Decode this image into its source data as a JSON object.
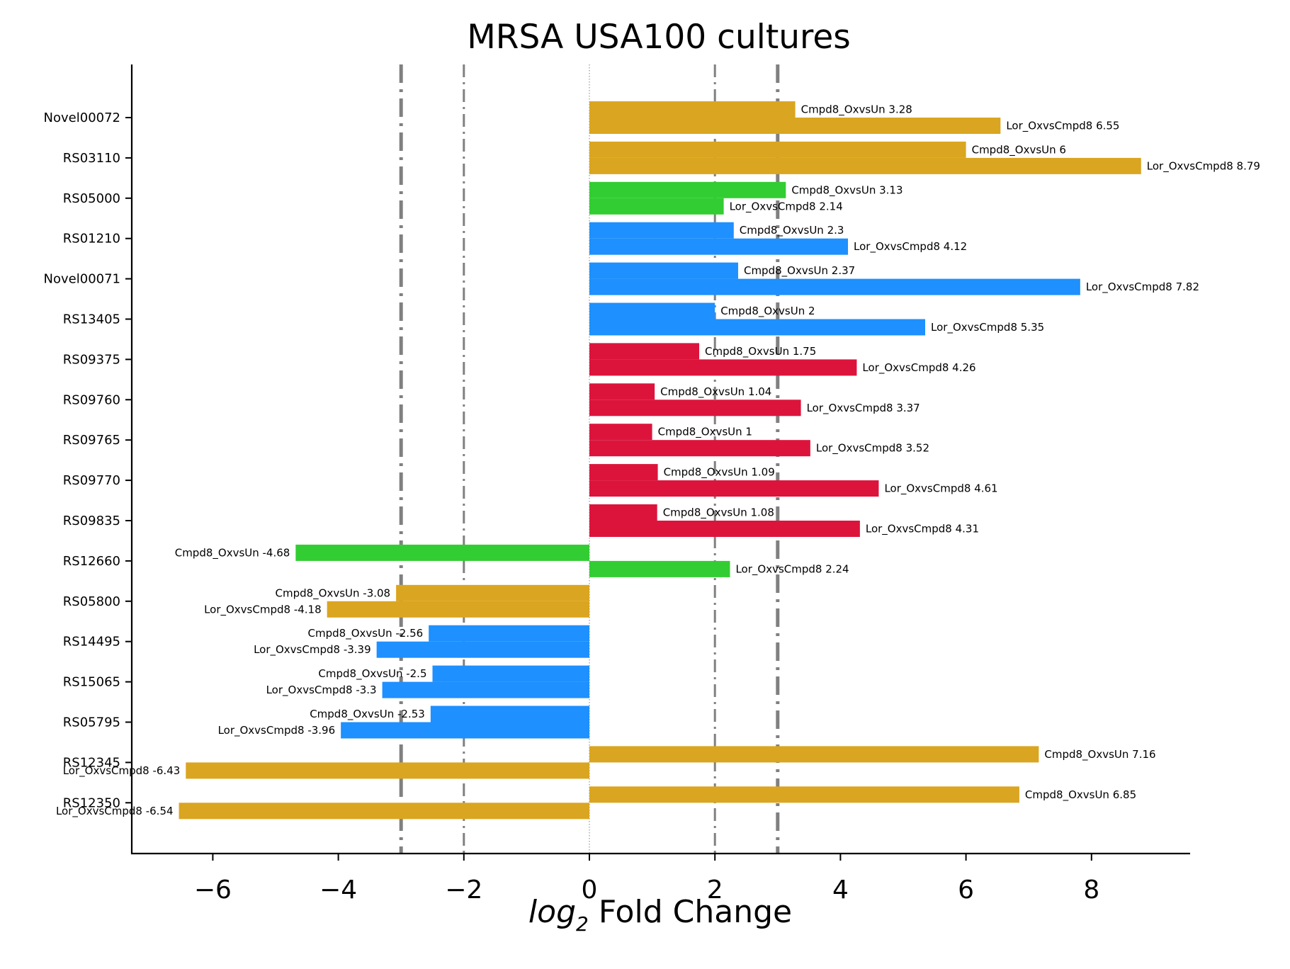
{
  "chart_data": {
    "type": "bar",
    "orientation": "horizontal",
    "title": "MRSA USA100 cultures",
    "xlabel_prefix": "log",
    "xlabel_sub": "2",
    "xlabel_suffix": " Fold Change",
    "xlim": [
      -7.3,
      9.5
    ],
    "xticks": [
      -6,
      -4,
      -2,
      0,
      2,
      4,
      6,
      8
    ],
    "xtick_labels": [
      "−6",
      "−4",
      "−2",
      "0",
      "2",
      "4",
      "6",
      "8"
    ],
    "reference_lines": [
      {
        "x": -3,
        "style": "dash-dot",
        "width": "thick"
      },
      {
        "x": -2,
        "style": "dash-dot",
        "width": "thin"
      },
      {
        "x": 0,
        "style": "dotted",
        "width": "hairline"
      },
      {
        "x": 2,
        "style": "dash-dot",
        "width": "thin"
      },
      {
        "x": 3,
        "style": "dash-dot",
        "width": "thick"
      }
    ],
    "colors": {
      "goldenrod": "#DAA520",
      "green": "#32CD32",
      "blue": "#1E90FF",
      "red": "#DC143C",
      "reference": "#808080"
    },
    "series_labels": [
      "Cmpd8_OxvsUn",
      "Lor_OxvsCmpd8"
    ],
    "genes": [
      {
        "name": "Novel00072",
        "color": "#DAA520",
        "cmpd8_oxvsun": 3.28,
        "lor_oxvscmpd8": 6.55
      },
      {
        "name": "RS03110",
        "color": "#DAA520",
        "cmpd8_oxvsun": 6.0,
        "lor_oxvscmpd8": 8.79
      },
      {
        "name": "RS05000",
        "color": "#32CD32",
        "cmpd8_oxvsun": 3.13,
        "lor_oxvscmpd8": 2.14
      },
      {
        "name": "RS01210",
        "color": "#1E90FF",
        "cmpd8_oxvsun": 2.3,
        "lor_oxvscmpd8": 4.12
      },
      {
        "name": "Novel00071",
        "color": "#1E90FF",
        "cmpd8_oxvsun": 2.37,
        "lor_oxvscmpd8": 7.82
      },
      {
        "name": "RS13405",
        "color": "#1E90FF",
        "cmpd8_oxvsun": 2.0,
        "lor_oxvscmpd8": 5.35
      },
      {
        "name": "RS09375",
        "color": "#DC143C",
        "cmpd8_oxvsun": 1.75,
        "lor_oxvscmpd8": 4.26
      },
      {
        "name": "RS09760",
        "color": "#DC143C",
        "cmpd8_oxvsun": 1.04,
        "lor_oxvscmpd8": 3.37
      },
      {
        "name": "RS09765",
        "color": "#DC143C",
        "cmpd8_oxvsun": 1.0,
        "lor_oxvscmpd8": 3.52
      },
      {
        "name": "RS09770",
        "color": "#DC143C",
        "cmpd8_oxvsun": 1.09,
        "lor_oxvscmpd8": 4.61
      },
      {
        "name": "RS09835",
        "color": "#DC143C",
        "cmpd8_oxvsun": 1.08,
        "lor_oxvscmpd8": 4.31
      },
      {
        "name": "RS12660",
        "color": "#32CD32",
        "cmpd8_oxvsun": -4.68,
        "lor_oxvscmpd8": 2.24
      },
      {
        "name": "RS05800",
        "color": "#DAA520",
        "cmpd8_oxvsun": -3.08,
        "lor_oxvscmpd8": -4.18
      },
      {
        "name": "RS14495",
        "color": "#1E90FF",
        "cmpd8_oxvsun": -2.56,
        "lor_oxvscmpd8": -3.39
      },
      {
        "name": "RS15065",
        "color": "#1E90FF",
        "cmpd8_oxvsun": -2.5,
        "lor_oxvscmpd8": -3.3
      },
      {
        "name": "RS05795",
        "color": "#1E90FF",
        "cmpd8_oxvsun": -2.53,
        "lor_oxvscmpd8": -3.96
      },
      {
        "name": "RS12345",
        "color": "#DAA520",
        "cmpd8_oxvsun": 7.16,
        "lor_oxvscmpd8": -6.43
      },
      {
        "name": "RS12350",
        "color": "#DAA520",
        "cmpd8_oxvsun": 6.85,
        "lor_oxvscmpd8": -6.54
      }
    ]
  }
}
